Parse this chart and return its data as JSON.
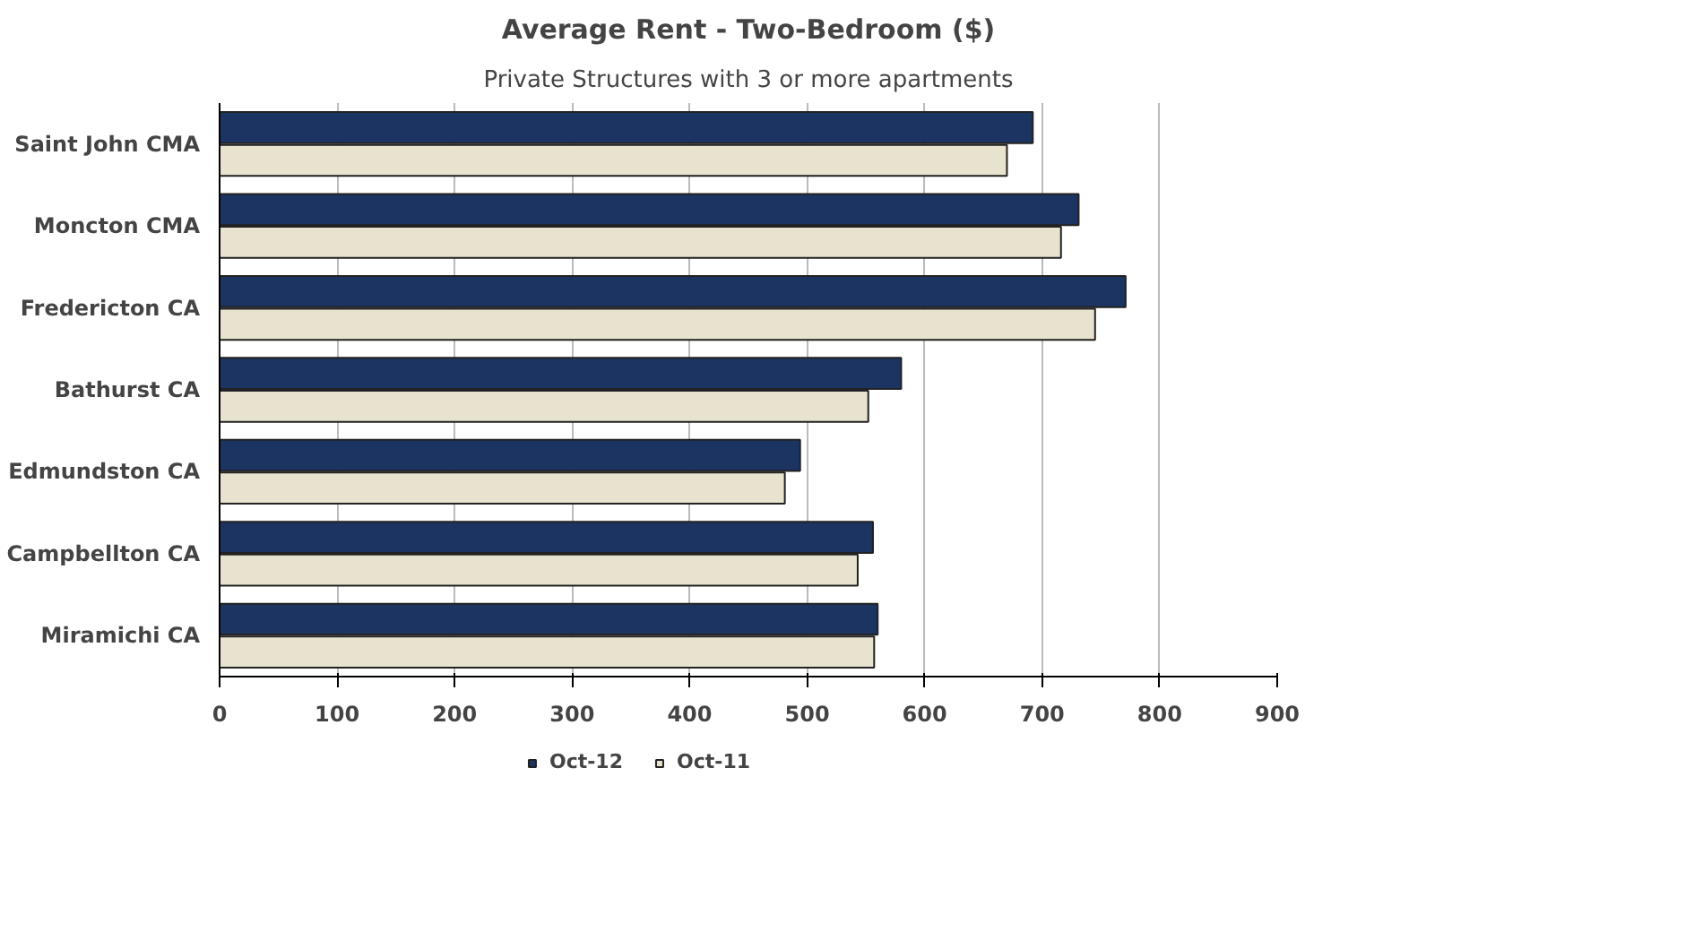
{
  "chart_data": {
    "type": "bar",
    "orientation": "horizontal",
    "title": "Average Rent - Two-Bedroom ($)",
    "subtitle": "Private Structures with 3 or more apartments",
    "categories": [
      "Saint John CMA",
      "Moncton CMA",
      "Fredericton CA",
      "Bathurst CA",
      "Edmundston CA",
      "Campbellton CA",
      "Miramichi CA"
    ],
    "series": [
      {
        "name": "Oct-12",
        "color": "#1c3461",
        "values": [
          692,
          731,
          771,
          580,
          494,
          556,
          560
        ]
      },
      {
        "name": "Oct-11",
        "color": "#e8e3cf",
        "values": [
          670,
          716,
          745,
          552,
          481,
          543,
          557
        ]
      }
    ],
    "xlim": [
      0,
      900
    ],
    "xticks": [
      0,
      100,
      200,
      300,
      400,
      500,
      600,
      700,
      800,
      900
    ],
    "grid": "x",
    "legend": "bottom"
  }
}
